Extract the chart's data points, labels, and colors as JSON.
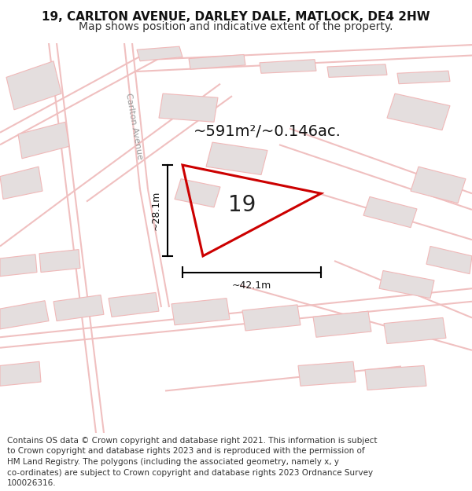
{
  "title_line1": "19, CARLTON AVENUE, DARLEY DALE, MATLOCK, DE4 2HW",
  "title_line2": "Map shows position and indicative extent of the property.",
  "area_text": "~591m²/~0.146ac.",
  "label_number": "19",
  "dim_width": "~42.1m",
  "dim_height": "~28.1m",
  "footer_lines": [
    "Contains OS data © Crown copyright and database right 2021. This information is subject",
    "to Crown copyright and database rights 2023 and is reproduced with the permission of",
    "HM Land Registry. The polygons (including the associated geometry, namely x, y",
    "co-ordinates) are subject to Crown copyright and database rights 2023 Ordnance Survey",
    "100026316."
  ],
  "bg_color": "#ffffff",
  "map_bg": "#f7f0f0",
  "road_color": "#f0c0c0",
  "plot_color": "#cc0000",
  "building_fill": "#e4dede",
  "building_stroke": "#f0b8b8",
  "street_label": "Carlton Avenue",
  "title_fontsize": 11,
  "subtitle_fontsize": 10,
  "footer_fontsize": 7.5
}
